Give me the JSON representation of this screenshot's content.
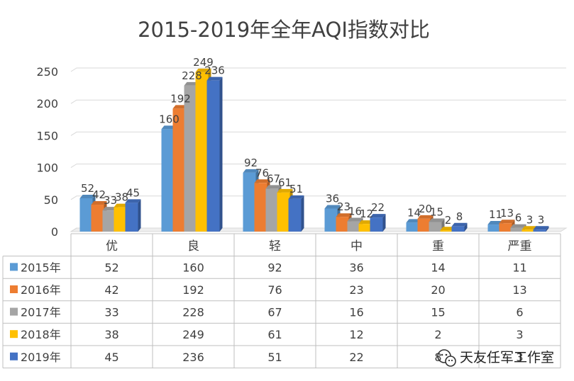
{
  "chart_data": {
    "type": "bar",
    "title": "2015-2019年全年AQI指数对比",
    "categories": [
      "优",
      "良",
      "轻",
      "中",
      "重",
      "严重"
    ],
    "series": [
      {
        "name": "2015年",
        "values": [
          52,
          160,
          92,
          36,
          14,
          11
        ],
        "color": "#5B9BD5"
      },
      {
        "name": "2016年",
        "values": [
          42,
          192,
          76,
          23,
          20,
          13
        ],
        "color": "#ED7D31"
      },
      {
        "name": "2017年",
        "values": [
          33,
          228,
          67,
          16,
          15,
          6
        ],
        "color": "#A5A5A5"
      },
      {
        "name": "2018年",
        "values": [
          38,
          249,
          61,
          12,
          2,
          3
        ],
        "color": "#FFC000"
      },
      {
        "name": "2019年",
        "values": [
          45,
          236,
          51,
          22,
          8,
          3
        ],
        "color": "#4472C4"
      }
    ],
    "yticks": [
      0,
      50,
      100,
      150,
      200,
      250
    ],
    "ylim": [
      0,
      250
    ],
    "grid": true,
    "legend": "data-table-left",
    "xlabel": "",
    "ylabel": ""
  },
  "watermark": {
    "text": "天友任军工作室",
    "icon": "wechat-icon"
  }
}
